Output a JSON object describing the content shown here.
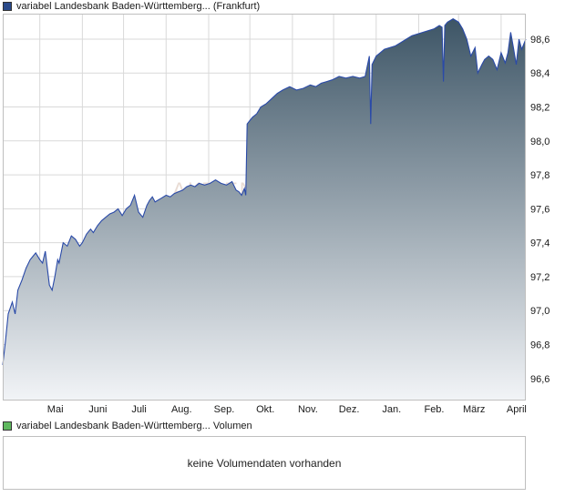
{
  "price_legend": {
    "label": "variabel Landesbank Baden-Württemberg... (Frankfurt)",
    "color": "#2a4a8a"
  },
  "volume_legend": {
    "label": "variabel Landesbank Baden-Württemberg... Volumen",
    "color": "#5fb85f"
  },
  "watermark": "AKTIEN",
  "volume_panel": {
    "message": "keine Volumendaten vorhanden"
  },
  "chart_data": {
    "type": "area",
    "title": "variabel Landesbank Baden-Württemberg... (Frankfurt)",
    "xlabel": "",
    "ylabel": "",
    "ylim": [
      96.47,
      98.75
    ],
    "y_ticks": [
      "96,6",
      "96,8",
      "97,0",
      "97,2",
      "97,4",
      "97,6",
      "97,8",
      "98,0",
      "98,2",
      "98,4",
      "98,6"
    ],
    "y_tick_values": [
      96.6,
      96.8,
      97.0,
      97.2,
      97.4,
      97.6,
      97.8,
      98.0,
      98.2,
      98.4,
      98.6
    ],
    "x_ticks": [
      "Mai",
      "Juni",
      "Juli",
      "Aug.",
      "Sep.",
      "Okt.",
      "Nov.",
      "Dez.",
      "Jan.",
      "Feb.",
      "März",
      "April"
    ],
    "x_range": [
      "2023-04-04",
      "2024-04-19"
    ],
    "x_tick_dates": [
      "2023-05-01",
      "2023-06-01",
      "2023-07-01",
      "2023-08-01",
      "2023-09-01",
      "2023-10-01",
      "2023-11-01",
      "2023-12-01",
      "2024-01-01",
      "2024-02-01",
      "2024-03-01",
      "2024-04-01"
    ],
    "grid": true,
    "legend_position": "top-left",
    "colors": {
      "line": "#2a4aa8",
      "fill_top": "#3d5566",
      "fill_bottom": "#f2f4f7",
      "grid": "#d9d9d9"
    },
    "series": [
      {
        "name": "variabel Landesbank Baden-Württemberg... (Frankfurt)",
        "x": [
          "2023-04-04",
          "2023-04-06",
          "2023-04-08",
          "2023-04-11",
          "2023-04-13",
          "2023-04-15",
          "2023-04-18",
          "2023-04-21",
          "2023-04-24",
          "2023-04-26",
          "2023-04-28",
          "2023-05-01",
          "2023-05-03",
          "2023-05-05",
          "2023-05-08",
          "2023-05-10",
          "2023-05-12",
          "2023-05-14",
          "2023-05-15",
          "2023-05-18",
          "2023-05-21",
          "2023-05-24",
          "2023-05-27",
          "2023-05-30",
          "2023-06-01",
          "2023-06-04",
          "2023-06-07",
          "2023-06-09",
          "2023-06-12",
          "2023-06-15",
          "2023-06-18",
          "2023-06-21",
          "2023-06-24",
          "2023-06-27",
          "2023-06-30",
          "2023-07-03",
          "2023-07-06",
          "2023-07-09",
          "2023-07-12",
          "2023-07-15",
          "2023-07-18",
          "2023-07-20",
          "2023-07-22",
          "2023-07-24",
          "2023-07-26",
          "2023-07-28",
          "2023-08-01",
          "2023-08-04",
          "2023-08-07",
          "2023-08-10",
          "2023-08-13",
          "2023-08-16",
          "2023-08-19",
          "2023-08-22",
          "2023-08-25",
          "2023-08-29",
          "2023-09-02",
          "2023-09-06",
          "2023-09-10",
          "2023-09-14",
          "2023-09-18",
          "2023-09-21",
          "2023-09-23",
          "2023-09-25",
          "2023-09-27",
          "2023-09-28",
          "2023-09-29",
          "2023-10-01",
          "2023-10-03",
          "2023-10-06",
          "2023-10-09",
          "2023-10-13",
          "2023-10-17",
          "2023-10-21",
          "2023-10-25",
          "2023-10-30",
          "2023-11-04",
          "2023-11-09",
          "2023-11-14",
          "2023-11-18",
          "2023-11-22",
          "2023-11-26",
          "2023-11-30",
          "2023-12-05",
          "2023-12-10",
          "2023-12-15",
          "2023-12-20",
          "2023-12-24",
          "2023-12-27",
          "2023-12-28",
          "2023-12-29",
          "2024-01-01",
          "2024-01-04",
          "2024-01-07",
          "2024-01-11",
          "2024-01-15",
          "2024-01-19",
          "2024-01-23",
          "2024-01-27",
          "2024-01-31",
          "2024-02-04",
          "2024-02-08",
          "2024-02-12",
          "2024-02-16",
          "2024-02-18",
          "2024-02-19",
          "2024-02-20",
          "2024-02-22",
          "2024-02-26",
          "2024-03-01",
          "2024-03-04",
          "2024-03-07",
          "2024-03-10",
          "2024-03-13",
          "2024-03-15",
          "2024-03-18",
          "2024-03-20",
          "2024-03-23",
          "2024-03-26",
          "2024-03-29",
          "2024-04-01",
          "2024-04-04",
          "2024-04-06",
          "2024-04-08",
          "2024-04-10",
          "2024-04-12",
          "2024-04-14",
          "2024-04-16",
          "2024-04-19"
        ],
        "values": [
          96.68,
          96.82,
          96.98,
          97.05,
          96.98,
          97.12,
          97.18,
          97.25,
          97.3,
          97.32,
          97.34,
          97.3,
          97.28,
          97.35,
          97.15,
          97.12,
          97.2,
          97.3,
          97.28,
          97.4,
          97.38,
          97.44,
          97.42,
          97.38,
          97.4,
          97.45,
          97.48,
          97.46,
          97.5,
          97.53,
          97.55,
          97.57,
          97.58,
          97.6,
          97.56,
          97.6,
          97.62,
          97.68,
          97.58,
          97.55,
          97.62,
          97.65,
          97.67,
          97.64,
          97.65,
          97.66,
          97.68,
          97.67,
          97.69,
          97.7,
          97.71,
          97.73,
          97.74,
          97.73,
          97.75,
          97.74,
          97.75,
          97.77,
          97.75,
          97.74,
          97.76,
          97.71,
          97.7,
          97.68,
          97.72,
          97.68,
          98.1,
          98.12,
          98.14,
          98.16,
          98.2,
          98.22,
          98.25,
          98.28,
          98.3,
          98.32,
          98.3,
          98.31,
          98.33,
          98.32,
          98.34,
          98.35,
          98.36,
          98.38,
          98.37,
          98.38,
          98.37,
          98.38,
          98.5,
          98.1,
          98.45,
          98.5,
          98.52,
          98.54,
          98.55,
          98.56,
          98.58,
          98.6,
          98.62,
          98.63,
          98.64,
          98.65,
          98.66,
          98.68,
          98.67,
          98.35,
          98.68,
          98.7,
          98.72,
          98.7,
          98.66,
          98.6,
          98.5,
          98.55,
          98.4,
          98.45,
          98.48,
          98.5,
          98.48,
          98.42,
          98.52,
          98.46,
          98.52,
          98.64,
          98.55,
          98.45,
          98.6,
          98.54,
          98.6
        ]
      }
    ]
  }
}
